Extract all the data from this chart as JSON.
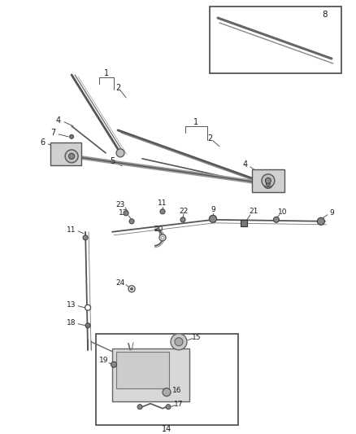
{
  "bg_color": "#ffffff",
  "line_color": "#3a3a3a",
  "label_color": "#1a1a1a",
  "fig_width": 4.38,
  "fig_height": 5.33,
  "dpi": 100
}
